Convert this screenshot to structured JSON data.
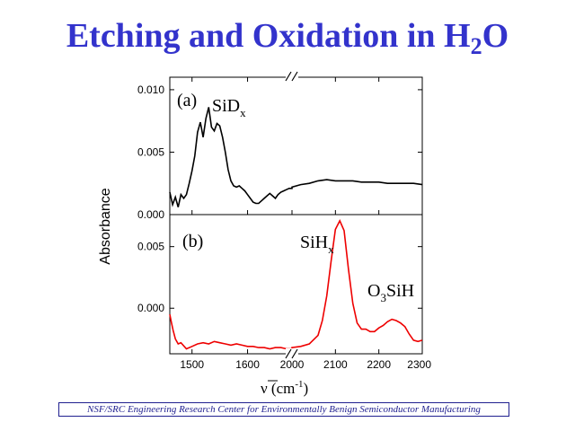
{
  "slide": {
    "title_main": "Etching and Oxidation in H",
    "title_sub": "2",
    "title_end": "O",
    "footer": "NSF/SRC Engineering Research Center for Environmentally Benign Semiconductor Manufacturing"
  },
  "colors": {
    "title": "#3333cc",
    "series_a": "#000000",
    "series_b": "#ee0000",
    "footer": "#1f1f8f"
  },
  "chart_data": [
    {
      "type": "line",
      "panel": "a",
      "panel_label": "(a)",
      "label_main": "SiD",
      "label_sub": "x",
      "xlim": [
        1460,
        2300
      ],
      "x_break": [
        1680,
        2000
      ],
      "ylim": [
        0,
        0.011
      ],
      "yticks": [
        "0.000",
        "0.005",
        "0.010"
      ],
      "ytick_values": [
        0,
        0.005,
        0.01
      ],
      "series": [
        {
          "x": [
            1460,
            1465,
            1470,
            1475,
            1480,
            1485,
            1490,
            1495,
            1500,
            1505,
            1510,
            1515,
            1520,
            1525,
            1530,
            1535,
            1540,
            1545,
            1550,
            1555,
            1560,
            1565,
            1570,
            1575,
            1580,
            1585,
            1590,
            1595,
            1600,
            1605,
            1610,
            1615,
            1620,
            1625,
            1630,
            1635,
            1640,
            1645,
            1650,
            1655,
            1660,
            1665,
            1670,
            1675,
            1680,
            2000,
            2020,
            2040,
            2060,
            2080,
            2100,
            2120,
            2140,
            2160,
            2180,
            2200,
            2220,
            2240,
            2260,
            2280,
            2300
          ],
          "y": [
            0.0018,
            0.0008,
            0.0014,
            0.0006,
            0.0016,
            0.0013,
            0.0016,
            0.0025,
            0.0035,
            0.0047,
            0.0066,
            0.0074,
            0.0062,
            0.0077,
            0.0086,
            0.007,
            0.0067,
            0.0073,
            0.0071,
            0.0062,
            0.005,
            0.0036,
            0.0027,
            0.0023,
            0.0022,
            0.0023,
            0.0021,
            0.0019,
            0.0016,
            0.0013,
            0.001,
            0.0009,
            0.0009,
            0.0011,
            0.0013,
            0.0015,
            0.0017,
            0.0015,
            0.0013,
            0.0016,
            0.0018,
            0.0019,
            0.002,
            0.0021,
            0.0021,
            0.0022,
            0.0024,
            0.0025,
            0.0027,
            0.0028,
            0.0027,
            0.0027,
            0.0027,
            0.0026,
            0.0026,
            0.0026,
            0.0025,
            0.0025,
            0.0025,
            0.0025,
            0.0024
          ]
        }
      ]
    },
    {
      "type": "line",
      "panel": "b",
      "panel_label": "(b)",
      "label_main": "SiH",
      "label_sub": "x",
      "label2_main": "O",
      "label2_sub": "3",
      "label2_end": "SiH",
      "xlim": [
        1460,
        2300
      ],
      "x_break": [
        1680,
        2000
      ],
      "xticks": [
        "1500",
        "1600",
        "2000",
        "2100",
        "2200",
        "2300"
      ],
      "xtick_values": [
        1500,
        1600,
        2000,
        2100,
        2200,
        2300
      ],
      "xlabel_main": "ν (cm",
      "xlabel_sup": "-1",
      "xlabel_end": ")",
      "ylabel": "Absorbance",
      "ylim": [
        -0.0037,
        0.0076
      ],
      "yticks": [
        "0.000",
        "0.005"
      ],
      "ytick_values": [
        0,
        0.005
      ],
      "series": [
        {
          "x": [
            1460,
            1463,
            1466,
            1470,
            1475,
            1480,
            1490,
            1500,
            1510,
            1520,
            1530,
            1540,
            1550,
            1560,
            1570,
            1580,
            1590,
            1600,
            1610,
            1620,
            1630,
            1640,
            1650,
            1660,
            1670,
            1680,
            2000,
            2020,
            2040,
            2060,
            2070,
            2080,
            2090,
            2100,
            2110,
            2120,
            2130,
            2140,
            2150,
            2160,
            2170,
            2180,
            2190,
            2200,
            2210,
            2220,
            2230,
            2240,
            2250,
            2260,
            2270,
            2280,
            2290,
            2300
          ],
          "y": [
            -0.0005,
            -0.0012,
            -0.0018,
            -0.0025,
            -0.0029,
            -0.0028,
            -0.0033,
            -0.0031,
            -0.0029,
            -0.0028,
            -0.0029,
            -0.0027,
            -0.0028,
            -0.0029,
            -0.003,
            -0.0029,
            -0.003,
            -0.0031,
            -0.0031,
            -0.0032,
            -0.0032,
            -0.0033,
            -0.0032,
            -0.0032,
            -0.0033,
            -0.0033,
            -0.0032,
            -0.0031,
            -0.0029,
            -0.0022,
            -0.001,
            0.001,
            0.0038,
            0.0064,
            0.0071,
            0.0063,
            0.0032,
            0.0004,
            -0.0012,
            -0.0017,
            -0.0017,
            -0.0019,
            -0.0019,
            -0.0016,
            -0.0014,
            -0.0011,
            -0.0009,
            -0.001,
            -0.0012,
            -0.0015,
            -0.0021,
            -0.0026,
            -0.0027,
            -0.0026
          ]
        }
      ]
    }
  ]
}
